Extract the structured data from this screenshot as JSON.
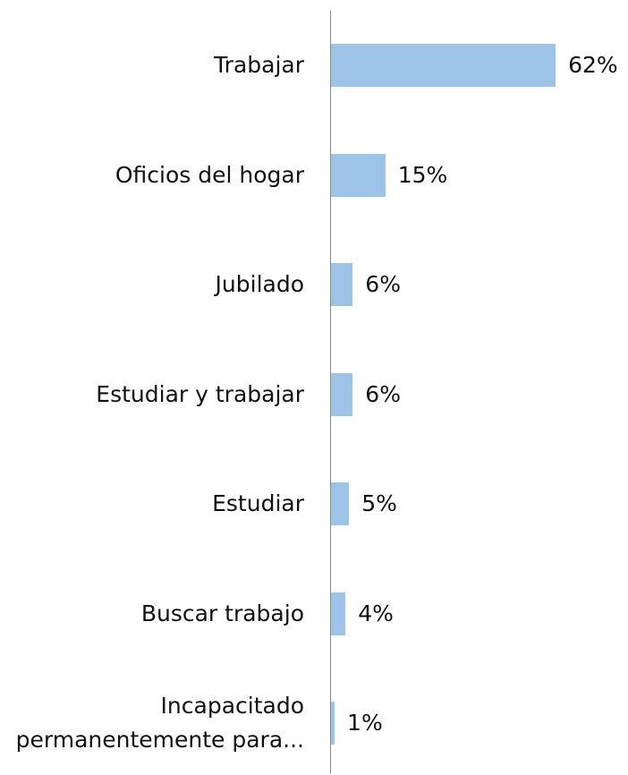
{
  "chart_data": {
    "type": "bar",
    "orientation": "horizontal",
    "categories": [
      "Trabajar",
      "Oficios del hogar",
      "Jubilado",
      "Estudiar y trabajar",
      "Estudiar",
      "Buscar trabajo",
      "Incapacitado\npermanentemente para..."
    ],
    "values": [
      62,
      15,
      6,
      6,
      5,
      4,
      1
    ],
    "value_labels": [
      "62%",
      "15%",
      "6%",
      "6%",
      "5%",
      "4%",
      "1%"
    ],
    "color": "#9dc3e6"
  }
}
